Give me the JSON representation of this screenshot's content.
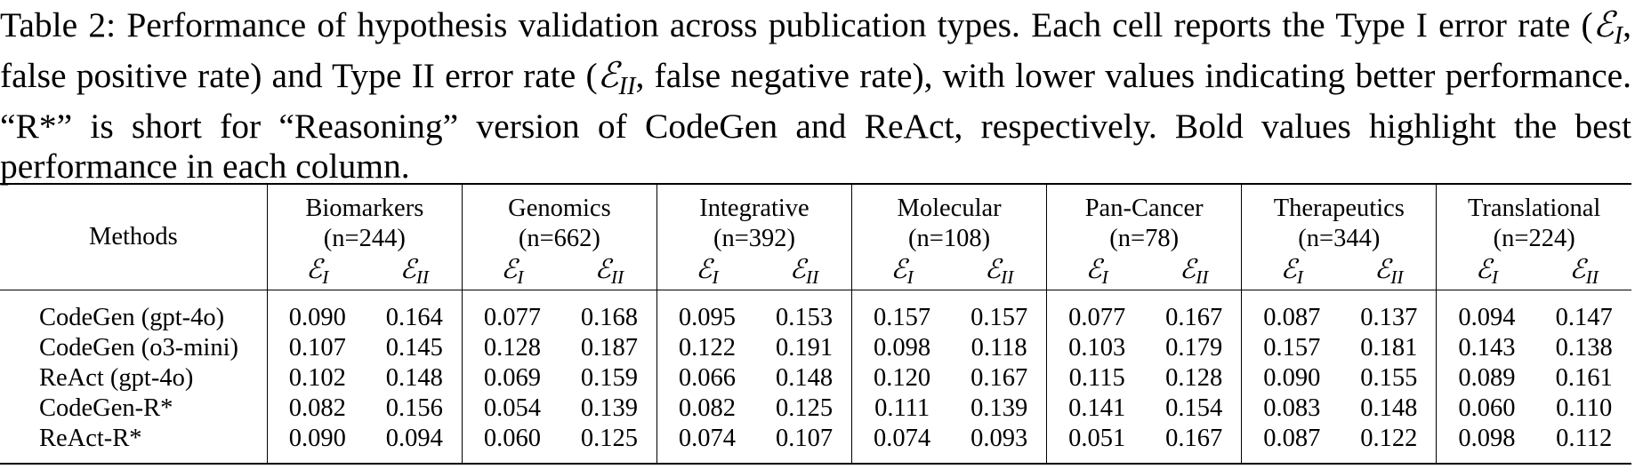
{
  "caption": {
    "label": "Table 2:",
    "text_1": " Performance of hypothesis validation across publication types. Each cell reports the Type I error rate (",
    "eps_I_main": "ℰ",
    "eps_I_sub": "I",
    "text_2": ", false positive rate) and Type II error rate (",
    "eps_II_main": "ℰ",
    "eps_II_sub": "II",
    "text_3": ", false negative rate), with lower values indicating better performance. “R*” is short for “Reasoning” version of CodeGen and ReAct, respectively. Bold values highlight the best performance in each column."
  },
  "table": {
    "methods_header": "Methods",
    "metric_I": {
      "symbol": "ℰ",
      "sub": "I"
    },
    "metric_II": {
      "symbol": "ℰ",
      "sub": "II"
    },
    "groups": [
      {
        "name": "Biomarkers",
        "n": "(n=244)"
      },
      {
        "name": "Genomics",
        "n": "(n=662)"
      },
      {
        "name": "Integrative",
        "n": "(n=392)"
      },
      {
        "name": "Molecular",
        "n": "(n=108)"
      },
      {
        "name": "Pan-Cancer",
        "n": "(n=78)"
      },
      {
        "name": "Therapeutics",
        "n": "(n=344)"
      },
      {
        "name": "Translational",
        "n": "(n=224)"
      }
    ],
    "rows": [
      {
        "method": "CodeGen (gpt-4o)",
        "values": [
          "0.090",
          "0.164",
          "0.077",
          "0.168",
          "0.095",
          "0.153",
          "0.157",
          "0.157",
          "0.077",
          "0.167",
          "0.087",
          "0.137",
          "0.094",
          "0.147"
        ],
        "bold": [
          false,
          false,
          false,
          false,
          false,
          false,
          false,
          false,
          false,
          false,
          false,
          false,
          false,
          false
        ]
      },
      {
        "method": "CodeGen (o3-mini)",
        "values": [
          "0.107",
          "0.145",
          "0.128",
          "0.187",
          "0.122",
          "0.191",
          "0.098",
          "0.118",
          "0.103",
          "0.179",
          "0.157",
          "0.181",
          "0.143",
          "0.138"
        ],
        "bold": [
          false,
          false,
          false,
          false,
          false,
          false,
          false,
          false,
          false,
          false,
          false,
          false,
          false,
          false
        ]
      },
      {
        "method": "ReAct (gpt-4o)",
        "values": [
          "0.102",
          "0.148",
          "0.069",
          "0.159",
          "0.066",
          "0.148",
          "0.120",
          "0.167",
          "0.115",
          "0.128",
          "0.090",
          "0.155",
          "0.089",
          "0.161"
        ],
        "bold": [
          false,
          false,
          false,
          false,
          true,
          false,
          false,
          false,
          false,
          true,
          false,
          false,
          false,
          false
        ]
      },
      {
        "method": "CodeGen-R*",
        "values": [
          "0.082",
          "0.156",
          "0.054",
          "0.139",
          "0.082",
          "0.125",
          "0.111",
          "0.139",
          "0.141",
          "0.154",
          "0.083",
          "0.148",
          "0.060",
          "0.110"
        ],
        "bold": [
          true,
          false,
          true,
          false,
          false,
          false,
          false,
          false,
          false,
          false,
          true,
          false,
          true,
          true
        ]
      },
      {
        "method": "ReAct-R*",
        "values": [
          "0.090",
          "0.094",
          "0.060",
          "0.125",
          "0.074",
          "0.107",
          "0.074",
          "0.093",
          "0.051",
          "0.167",
          "0.087",
          "0.122",
          "0.098",
          "0.112"
        ],
        "bold": [
          false,
          true,
          false,
          true,
          false,
          true,
          true,
          true,
          true,
          false,
          false,
          true,
          false,
          false
        ]
      }
    ]
  }
}
